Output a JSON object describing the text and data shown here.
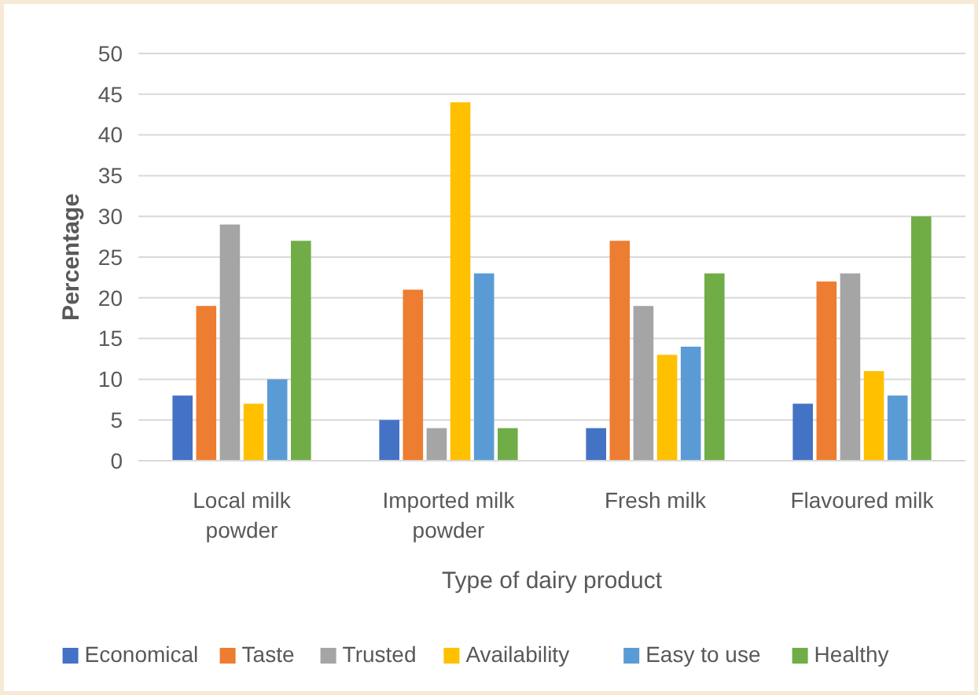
{
  "chart_data": {
    "type": "bar",
    "xlabel": "Type of dairy product",
    "ylabel": "Percentage",
    "categories": [
      "Local milk powder",
      "Imported milk powder",
      "Fresh milk",
      "Flavoured milk"
    ],
    "series": [
      {
        "name": "Economical",
        "color": "#4472c4",
        "values": [
          8,
          5,
          4,
          7
        ]
      },
      {
        "name": "Taste",
        "color": "#ed7d31",
        "values": [
          19,
          21,
          27,
          22
        ]
      },
      {
        "name": "Trusted",
        "color": "#a5a5a5",
        "values": [
          29,
          4,
          19,
          23
        ]
      },
      {
        "name": "Availability",
        "color": "#ffc000",
        "values": [
          7,
          44,
          13,
          11
        ]
      },
      {
        "name": "Easy to use",
        "color": "#5b9bd5",
        "values": [
          10,
          23,
          14,
          8
        ]
      },
      {
        "name": "Healthy",
        "color": "#70ad47",
        "values": [
          27,
          4,
          23,
          30
        ]
      }
    ],
    "ylim": [
      0,
      50
    ],
    "yticks": [
      0,
      5,
      10,
      15,
      20,
      25,
      30,
      35,
      40,
      45,
      50
    ],
    "grid": "y",
    "legend": "bottom"
  }
}
